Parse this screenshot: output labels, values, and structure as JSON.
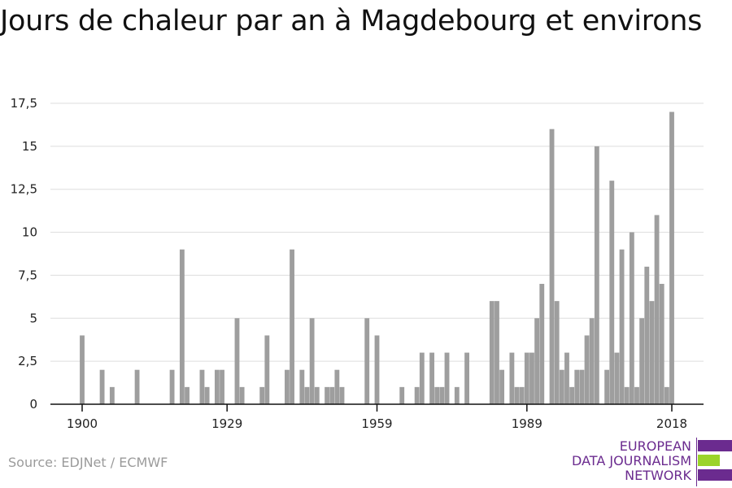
{
  "title": "Jours de chaleur par an à Magdebourg et environs",
  "source": "Source: EDJNet / ECMWF",
  "logo": {
    "lines": [
      "EUROPEAN",
      "DATA JOURNALISM",
      "NETWORK"
    ],
    "colors": [
      "#6b2b8f",
      "#9bd42a",
      "#6b2b8f"
    ]
  },
  "chart_data": {
    "type": "bar",
    "title": "Jours de chaleur par an à Magdebourg et environs",
    "xlabel": "",
    "ylabel": "",
    "x_range": [
      1900,
      2018
    ],
    "ylim": [
      0,
      17.5
    ],
    "y_ticks": [
      0,
      2.5,
      5,
      7.5,
      10,
      12.5,
      15,
      17.5
    ],
    "y_tick_labels": [
      "0",
      "2,5",
      "5",
      "7,5",
      "10",
      "12,5",
      "15",
      "17,5"
    ],
    "x_ticks": [
      1900,
      1929,
      1959,
      1989,
      2018
    ],
    "x_tick_labels": [
      "1900",
      "1929",
      "1959",
      "1989",
      "2018"
    ],
    "grid": true,
    "bar_color": "#9e9e9e",
    "categories": [
      1900,
      1901,
      1902,
      1903,
      1904,
      1905,
      1906,
      1907,
      1908,
      1909,
      1910,
      1911,
      1912,
      1913,
      1914,
      1915,
      1916,
      1917,
      1918,
      1919,
      1920,
      1921,
      1922,
      1923,
      1924,
      1925,
      1926,
      1927,
      1928,
      1929,
      1930,
      1931,
      1932,
      1933,
      1934,
      1935,
      1936,
      1937,
      1938,
      1939,
      1940,
      1941,
      1942,
      1943,
      1944,
      1945,
      1946,
      1947,
      1948,
      1949,
      1950,
      1951,
      1952,
      1953,
      1954,
      1955,
      1956,
      1957,
      1958,
      1959,
      1960,
      1961,
      1962,
      1963,
      1964,
      1965,
      1966,
      1967,
      1968,
      1969,
      1970,
      1971,
      1972,
      1973,
      1974,
      1975,
      1976,
      1977,
      1978,
      1979,
      1980,
      1981,
      1982,
      1983,
      1984,
      1985,
      1986,
      1987,
      1988,
      1989,
      1990,
      1991,
      1992,
      1993,
      1994,
      1995,
      1996,
      1997,
      1998,
      1999,
      2000,
      2001,
      2002,
      2003,
      2004,
      2005,
      2006,
      2007,
      2008,
      2009,
      2010,
      2011,
      2012,
      2013,
      2014,
      2015,
      2016,
      2017,
      2018
    ],
    "values": [
      4,
      0,
      0,
      0,
      2,
      0,
      1,
      0,
      0,
      0,
      0,
      2,
      0,
      0,
      0,
      0,
      0,
      0,
      2,
      0,
      9,
      1,
      0,
      0,
      2,
      1,
      0,
      2,
      2,
      0,
      0,
      5,
      1,
      0,
      0,
      0,
      1,
      4,
      0,
      0,
      0,
      2,
      9,
      0,
      2,
      1,
      5,
      1,
      0,
      1,
      1,
      2,
      1,
      0,
      0,
      0,
      0,
      5,
      0,
      4,
      0,
      0,
      0,
      0,
      1,
      0,
      0,
      1,
      3,
      0,
      3,
      1,
      1,
      3,
      0,
      1,
      0,
      3,
      0,
      0,
      0,
      0,
      6,
      6,
      2,
      0,
      3,
      1,
      1,
      3,
      3,
      5,
      7,
      0,
      16,
      6,
      2,
      3,
      1,
      2,
      2,
      4,
      5,
      15,
      0,
      2,
      13,
      3,
      9,
      1,
      10,
      1,
      5,
      8,
      6,
      11,
      7,
      1,
      17
    ]
  }
}
